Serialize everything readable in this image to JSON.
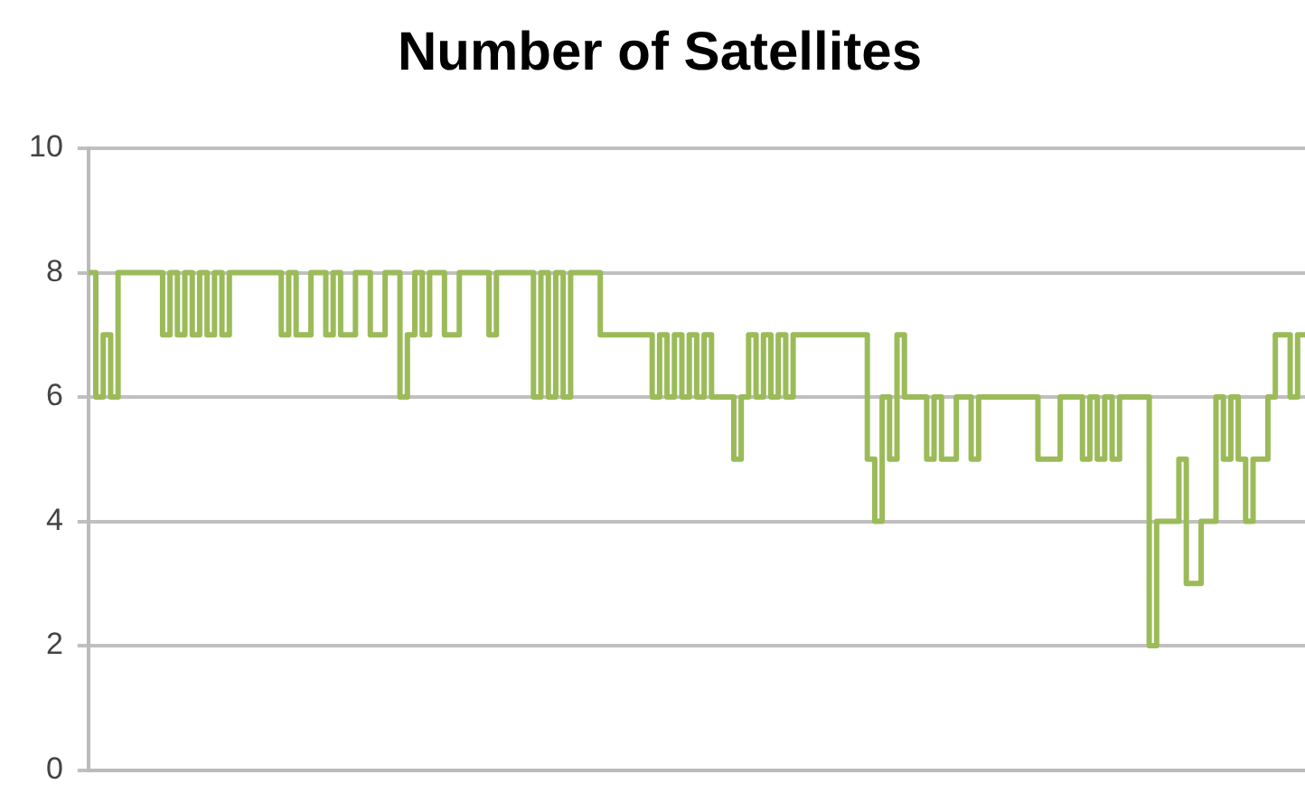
{
  "chart_data": {
    "type": "step",
    "title": "Number of Satellites",
    "categories": [
      null,
      null,
      null,
      null,
      null,
      null,
      null,
      null,
      null,
      null,
      null,
      null,
      null,
      null,
      null,
      null,
      null,
      null,
      null,
      null,
      null,
      null,
      null,
      null,
      null,
      null,
      null,
      null,
      null,
      null,
      null,
      null,
      null,
      null,
      null,
      null,
      null,
      null,
      null,
      null,
      null,
      null,
      null,
      null,
      null,
      null,
      null,
      null,
      null,
      null,
      null,
      null,
      null,
      null,
      null,
      null,
      null,
      null,
      null,
      null,
      null,
      null,
      null,
      null,
      null,
      null,
      null,
      null,
      null,
      null,
      null,
      null,
      null,
      null,
      null,
      null,
      null,
      null,
      null,
      null,
      null,
      null,
      null,
      null,
      null,
      null,
      null,
      null,
      null,
      null,
      null,
      null,
      null,
      null,
      null,
      null,
      null,
      null,
      null,
      null,
      null,
      null,
      null,
      null,
      null,
      null,
      null,
      null,
      null,
      null,
      null,
      null,
      null,
      null,
      null,
      null,
      null,
      null,
      null,
      null,
      null,
      null,
      null,
      null,
      null,
      null,
      null,
      null,
      null,
      null,
      null,
      null,
      null,
      null,
      null,
      null,
      null,
      null,
      null,
      null,
      null,
      null,
      null,
      null,
      null,
      null,
      null,
      null,
      null,
      null,
      null,
      null,
      null,
      null,
      null,
      null,
      null,
      null,
      null,
      null,
      null,
      null,
      null,
      null,
      null
    ],
    "values": [
      8,
      6,
      7,
      6,
      8,
      8,
      8,
      8,
      8,
      8,
      7,
      8,
      7,
      8,
      7,
      8,
      7,
      8,
      7,
      8,
      8,
      8,
      8,
      8,
      8,
      8,
      7,
      8,
      7,
      7,
      8,
      8,
      7,
      8,
      7,
      7,
      8,
      8,
      7,
      7,
      8,
      8,
      6,
      7,
      8,
      7,
      8,
      8,
      7,
      7,
      8,
      8,
      8,
      8,
      7,
      8,
      8,
      8,
      8,
      8,
      6,
      8,
      6,
      8,
      6,
      8,
      8,
      8,
      8,
      7,
      7,
      7,
      7,
      7,
      7,
      7,
      6,
      7,
      6,
      7,
      6,
      7,
      6,
      7,
      6,
      6,
      6,
      5,
      6,
      7,
      6,
      7,
      6,
      7,
      6,
      7,
      7,
      7,
      7,
      7,
      7,
      7,
      7,
      7,
      7,
      5,
      4,
      6,
      5,
      7,
      6,
      6,
      6,
      5,
      6,
      5,
      5,
      6,
      6,
      5,
      6,
      6,
      6,
      6,
      6,
      6,
      6,
      6,
      5,
      5,
      5,
      6,
      6,
      6,
      5,
      6,
      5,
      6,
      5,
      6,
      6,
      6,
      6,
      2,
      4,
      4,
      4,
      5,
      3,
      3,
      4,
      4,
      6,
      5,
      6,
      5,
      4,
      5,
      5,
      6,
      7,
      7,
      6,
      7,
      7
    ],
    "color": "#9bbb59",
    "ylim": [
      0,
      10
    ],
    "yticks": [
      0,
      2,
      4,
      6,
      8,
      10
    ],
    "grid": "y",
    "legend": false
  }
}
